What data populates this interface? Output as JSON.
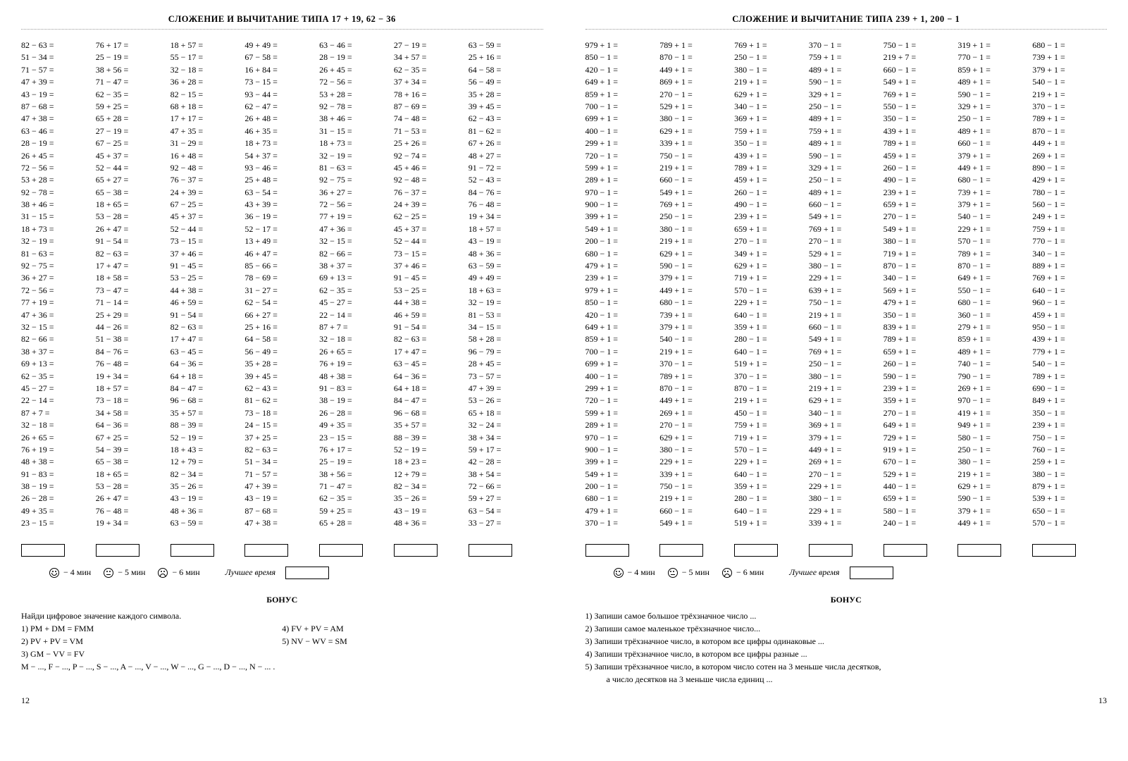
{
  "left": {
    "title": "СЛОЖЕНИЕ И ВЫЧИТАНИЕ ТИПА 17 + 19, 62 − 36",
    "columns": [
      [
        "82 − 63 =",
        "51 − 34 =",
        "71 − 57 =",
        "47 + 39 =",
        "43 − 19 =",
        "87 − 68 =",
        "47 + 38 =",
        "63 − 46 =",
        "28 − 19 =",
        "26 + 45 =",
        "72 − 56 =",
        "53 + 28 =",
        "92 − 78 =",
        "38 + 46 =",
        "31 − 15 =",
        "18 + 73 =",
        "32 − 19 =",
        "81 − 63 =",
        "92 − 75 =",
        "36 + 27 =",
        "72 − 56 =",
        "77 + 19 =",
        "47 + 36 =",
        "32 − 15 =",
        "82 − 66 =",
        "38 + 37 =",
        "69 + 13 =",
        "62 − 35 =",
        "45 − 27 =",
        "22 − 14 =",
        "87 +  7 =",
        "32 − 18 =",
        "26 + 65 =",
        "76 + 19 =",
        "48 + 38 =",
        "91 − 83 =",
        "38 − 19 =",
        "26 − 28 =",
        "49 + 35 =",
        "23 − 15 ="
      ],
      [
        "76 + 17 =",
        "25 − 19 =",
        "38 + 56 =",
        "71 − 47 =",
        "62 − 35 =",
        "59 + 25 =",
        "65 + 28 =",
        "27 − 19 =",
        "67 − 25 =",
        "45 + 37 =",
        "52 − 44 =",
        "65 + 27 =",
        "65 − 38 =",
        "18 + 65 =",
        "53 − 28 =",
        "26 + 47 =",
        "91 − 54 =",
        "82 − 63 =",
        "17 + 47 =",
        "18 + 58 =",
        "73 − 47 =",
        "71 − 14 =",
        "25 + 29 =",
        "44 − 26 =",
        "51 − 38 =",
        "84 − 76 =",
        "76 − 48 =",
        "19 + 34 =",
        "18 + 57 =",
        "73 − 18 =",
        "34 + 58 =",
        "64 − 36 =",
        "67 + 25 =",
        "54 − 39 =",
        "65 − 38 =",
        "18 + 65 =",
        "53 − 28 =",
        "26 + 47 =",
        "76 − 48 =",
        "19 + 34 ="
      ],
      [
        "18 + 57 =",
        "55 − 17 =",
        "32 − 18 =",
        "36 + 28 =",
        "82 − 15 =",
        "68 + 18 =",
        "17 + 17 =",
        "47 + 35 =",
        "31 − 29 =",
        "16 + 48 =",
        "92 − 48 =",
        "76 − 37 =",
        "24 + 39 =",
        "67 − 25 =",
        "45 + 37 =",
        "52 − 44 =",
        "73 − 15 =",
        "37 + 46 =",
        "91 − 45 =",
        "53 − 25 =",
        "44 + 38 =",
        "46 + 59 =",
        "91 − 54 =",
        "82 − 63 =",
        "17 + 47 =",
        "63 − 45 =",
        "64 − 36 =",
        "64 + 18 =",
        "84 − 47 =",
        "96 − 68 =",
        "35 + 57 =",
        "88 − 39 =",
        "52 − 19 =",
        "18 + 43 =",
        "12 + 79 =",
        "82 − 34 =",
        "35 − 26 =",
        "43 − 19 =",
        "48 + 36 =",
        "63 − 59 ="
      ],
      [
        "49 + 49 =",
        "67 − 58 =",
        "16 + 84 =",
        "73 − 15 =",
        "93 − 44 =",
        "62 − 47 =",
        "26 + 48 =",
        "46 + 35 =",
        "18 + 73 =",
        "54 + 37 =",
        "93 − 46 =",
        "25 + 48 =",
        "63 − 54 =",
        "43 + 39 =",
        "36 − 19 =",
        "52 − 17 =",
        "13 + 49 =",
        "46 + 47 =",
        "85 − 66 =",
        "78 − 69 =",
        "31 − 27 =",
        "62 − 54 =",
        "66 + 27 =",
        "25 + 16 =",
        "64 − 58 =",
        "56 − 49 =",
        "35 + 28 =",
        "39 + 45 =",
        "62 − 43 =",
        "81 − 62 =",
        "73 − 18 =",
        "24 − 15 =",
        "37 + 25 =",
        "82 − 63 =",
        "51 − 34 =",
        "71 − 57 =",
        "47 + 39 =",
        "43 − 19 =",
        "87 − 68 =",
        "47 + 38 ="
      ],
      [
        "63 − 46 =",
        "28 − 19 =",
        "26 + 45 =",
        "72 − 56 =",
        "53 + 28 =",
        "92 − 78 =",
        "38 + 46 =",
        "31 − 15 =",
        "18 + 73 =",
        "32 − 19 =",
        "81 − 63 =",
        "92 − 75 =",
        "36 + 27 =",
        "72 − 56 =",
        "77 + 19 =",
        "47 + 36 =",
        "32 − 15 =",
        "82 − 66 =",
        "38 + 37 =",
        "69 + 13 =",
        "62 − 35 =",
        "45 − 27 =",
        "22 − 14 =",
        "87 +  7 =",
        "32 − 18 =",
        "26 + 65 =",
        "76 + 19 =",
        "48 + 38 =",
        "91 − 83 =",
        "38 − 19 =",
        "26 − 28 =",
        "49 + 35 =",
        "23 − 15 =",
        "76 + 17 =",
        "25 − 19 =",
        "38 + 56 =",
        "71 − 47 =",
        "62 − 35 =",
        "59 + 25 =",
        "65 + 28 ="
      ],
      [
        "27 − 19 =",
        "34 + 57 =",
        "62 − 35 =",
        "37 + 34 =",
        "78 + 16 =",
        "87 − 69 =",
        "74 − 48 =",
        "71 − 53 =",
        "25 + 26 =",
        "92 − 74 =",
        "45 + 46 =",
        "92 − 48 =",
        "76 − 37 =",
        "24 + 39 =",
        "62 − 25 =",
        "45 + 37 =",
        "52 − 44 =",
        "73 − 15 =",
        "37 + 46 =",
        "91 − 45 =",
        "53 − 25 =",
        "44 + 38 =",
        "46 + 59 =",
        "91 − 54 =",
        "82 − 63 =",
        "17 + 47 =",
        "63 − 45 =",
        "64 − 36 =",
        "64 + 18 =",
        "84 − 47 =",
        "96 − 68 =",
        "35 + 57 =",
        "88 − 39 =",
        "52 − 19 =",
        "18 + 23 =",
        "12 + 79 =",
        "82 − 34 =",
        "35 − 26 =",
        "43 − 19 =",
        "48 + 36 ="
      ],
      [
        "63 − 59 =",
        "25 + 16 =",
        "64 − 58 =",
        "56 − 49 =",
        "35 + 28 =",
        "39 + 45 =",
        "62 − 43 =",
        "81 − 62 =",
        "67 + 26 =",
        "48 + 27 =",
        "91 − 72 =",
        "52 − 43 =",
        "84 − 76 =",
        "76 − 48 =",
        "19 + 34 =",
        "18 + 57 =",
        "43 − 19 =",
        "48 + 36 =",
        "63 − 59 =",
        "49 + 49 =",
        "18 + 63 =",
        "32 − 19 =",
        "81 − 53 =",
        "34 − 15 =",
        "58 + 28 =",
        "96 − 79 =",
        "28 + 45 =",
        "73 − 57 =",
        "47 + 39 =",
        "53 − 26 =",
        "65 + 18 =",
        "32 − 24 =",
        "38 + 34 =",
        "59 + 17 =",
        "42 − 28 =",
        "38 + 54 =",
        "72 − 66 =",
        "59 + 27 =",
        "63 − 54 =",
        "33 − 27 ="
      ]
    ],
    "times": [
      "− 4 мин",
      "− 5 мин",
      "− 6 мин"
    ],
    "best_label": "Лучшее время",
    "bonus_title": "БОНУС",
    "bonus_intro": "Найди цифровое значение каждого символа.",
    "bonus_lines_col1": [
      "1)  PM + DM = FMM",
      "2)  PV + PV = VM",
      "3)  GM − VV  = FV"
    ],
    "bonus_lines_col2": [
      "4)  FV + PV = AM",
      "5)  NV − WV = SM"
    ],
    "bonus_footer": "M − ...,  F − ...,  P − ...,  S − ...,  A − ...,  V − ...,  W − ...,  G − ...,  D − ...,  N − ... .",
    "pagenum": "12"
  },
  "right": {
    "title": "СЛОЖЕНИЕ И ВЫЧИТАНИЕ ТИПА 239 + 1, 200 − 1",
    "columns": [
      [
        "979 + 1 =",
        "850 − 1 =",
        "420 − 1 =",
        "649 + 1 =",
        "859 + 1 =",
        "700 − 1 =",
        "699 + 1 =",
        "400 − 1 =",
        "299 + 1 =",
        "720 − 1 =",
        "599 + 1 =",
        "289 + 1 =",
        "970 − 1 =",
        "900 − 1 =",
        "399 + 1 =",
        "549 + 1 =",
        "200 − 1 =",
        "680 − 1 =",
        "479 + 1 =",
        "239 + 1 =",
        "979 + 1 =",
        "850 − 1 =",
        "420 − 1 =",
        "649 + 1 =",
        "859 + 1 =",
        "700 − 1 =",
        "699 + 1 =",
        "400 − 1 =",
        "299 + 1 =",
        "720 − 1 =",
        "599 + 1 =",
        "289 + 1 =",
        "970 − 1 =",
        "900 − 1 =",
        "399 + 1 =",
        "549 + 1 =",
        "200 − 1 =",
        "680 − 1 =",
        "479 + 1 =",
        "370 − 1 ="
      ],
      [
        "789 + 1 =",
        "870 − 1 =",
        "449 + 1 =",
        "869 + 1 =",
        "270 − 1 =",
        "529 + 1 =",
        "380 − 1 =",
        "629 + 1 =",
        "339 + 1 =",
        "750 − 1 =",
        "219 + 1 =",
        "660 − 1 =",
        "549 + 1 =",
        "769 + 1 =",
        "250 − 1 =",
        "380 − 1 =",
        "219 + 1 =",
        "629 + 1 =",
        "590 − 1 =",
        "379 + 1 =",
        "449 + 1 =",
        "680 − 1 =",
        "739 + 1 =",
        "379 + 1 =",
        "540 − 1 =",
        "219 + 1 =",
        "370 − 1 =",
        "789 + 1 =",
        "870 − 1 =",
        "449 + 1 =",
        "269 + 1 =",
        "270 − 1 =",
        "629 + 1 =",
        "380 − 1 =",
        "229 + 1 =",
        "339 + 1 =",
        "750 − 1 =",
        "219 + 1 =",
        "660 − 1 =",
        "549 + 1 ="
      ],
      [
        "769 + 1 =",
        "250 − 1 =",
        "380 − 1 =",
        "219 + 1 =",
        "629 + 1 =",
        "340 − 1 =",
        "369 + 1 =",
        "759 + 1 =",
        "350 − 1 =",
        "439 + 1 =",
        "789 + 1 =",
        "459 + 1 =",
        "260 − 1 =",
        "490 − 1 =",
        "239 + 1 =",
        "659 + 1 =",
        "270 − 1 =",
        "349 + 1 =",
        "629 + 1 =",
        "719 + 1 =",
        "570 − 1 =",
        "229 + 1 =",
        "640 − 1 =",
        "359 + 1 =",
        "280 − 1 =",
        "640 − 1 =",
        "519 + 1 =",
        "370 − 1 =",
        "870 − 1 =",
        "219 + 1 =",
        "450 − 1 =",
        "759 + 1 =",
        "719 + 1 =",
        "570 − 1 =",
        "229 + 1 =",
        "640 − 1 =",
        "359 + 1 =",
        "280 − 1 =",
        "640 − 1 =",
        "519 + 1 ="
      ],
      [
        "370 − 1 =",
        "759 + 1 =",
        "489 + 1 =",
        "590 − 1 =",
        "329 + 1 =",
        "250 − 1 =",
        "489 + 1 =",
        "759 + 1 =",
        "489 + 1 =",
        "590 − 1 =",
        "329 + 1 =",
        "250 − 1 =",
        "489 + 1 =",
        "660 − 1 =",
        "549 + 1 =",
        "769 + 1 =",
        "270 − 1 =",
        "529 + 1 =",
        "380 − 1 =",
        "229 + 1 =",
        "639 + 1 =",
        "750 − 1 =",
        "219 + 1 =",
        "660 − 1 =",
        "549 + 1 =",
        "769 + 1 =",
        "250 − 1 =",
        "380 − 1 =",
        "219 + 1 =",
        "629 + 1 =",
        "340 − 1 =",
        "369 + 1 =",
        "379 + 1 =",
        "449 + 1 =",
        "269 + 1 =",
        "270 − 1 =",
        "229 + 1 =",
        "380 − 1 =",
        "229 + 1 =",
        "339 + 1 ="
      ],
      [
        "750 − 1 =",
        "219 + 7 =",
        "660 − 1 =",
        "549 + 1 =",
        "769 + 1 =",
        "550 − 1 =",
        "350 − 1 =",
        "439 + 1 =",
        "789 + 1 =",
        "459 + 1 =",
        "260 − 1 =",
        "490 − 1 =",
        "239 + 1 =",
        "659 + 1 =",
        "270 − 1 =",
        "549 + 1 =",
        "380 − 1 =",
        "719 + 1 =",
        "870 − 1 =",
        "340 − 1 =",
        "569 + 1 =",
        "479 + 1 =",
        "350 − 1 =",
        "839 + 1 =",
        "789 + 1 =",
        "659 + 1 =",
        "260 − 1 =",
        "590 − 1 =",
        "239 + 1 =",
        "359 + 1 =",
        "270 − 1 =",
        "649 + 1 =",
        "729 + 1 =",
        "919 + 1 =",
        "670 − 1 =",
        "529 + 1 =",
        "440 − 1 =",
        "659 + 1 =",
        "580 − 1 =",
        "240 − 1 ="
      ],
      [
        "319 + 1 =",
        "770 − 1 =",
        "859 + 1 =",
        "489 + 1 =",
        "590 − 1 =",
        "329 + 1 =",
        "250 − 1 =",
        "489 + 1 =",
        "660 − 1 =",
        "379 + 1 =",
        "449 + 1 =",
        "680 − 1 =",
        "739 + 1 =",
        "379 + 1 =",
        "540 − 1 =",
        "229 + 1 =",
        "570 − 1 =",
        "789 + 1 =",
        "870 − 1 =",
        "649 + 1 =",
        "550 − 1 =",
        "680 − 1 =",
        "360 − 1 =",
        "279 + 1 =",
        "859 + 1 =",
        "489 + 1 =",
        "740 − 1 =",
        "790 − 1 =",
        "269 + 1 =",
        "970 − 1 =",
        "419 + 1 =",
        "949 + 1 =",
        "580 − 1 =",
        "250 − 1 =",
        "380 − 1 =",
        "219 + 1 =",
        "629 + 1 =",
        "590 − 1 =",
        "379 + 1 =",
        "449 + 1 ="
      ],
      [
        "680 − 1 =",
        "739 + 1 =",
        "379 + 1 =",
        "540 − 1 =",
        "219 + 1 =",
        "370 − 1 =",
        "789 + 1 =",
        "870 − 1 =",
        "449 + 1 =",
        "269 + 1 =",
        "890 − 1 =",
        "429 + 1 =",
        "780 − 1 =",
        "560 − 1 =",
        "249 + 1 =",
        "759 + 1 =",
        "770 − 1 =",
        "340 − 1 =",
        "889 + 1 =",
        "769 + 1 =",
        "640 − 1 =",
        "960 − 1 =",
        "459 + 1 =",
        "950 − 1 =",
        "439 + 1 =",
        "779 + 1 =",
        "540 − 1 =",
        "789 + 1 =",
        "690 − 1 =",
        "849 + 1 =",
        "350 − 1 =",
        "239 + 1 =",
        "750 − 1 =",
        "760 − 1 =",
        "259 + 1 =",
        "380 − 1 =",
        "879 + 1 =",
        "539 + 1 =",
        "650 − 1 =",
        "570 − 1 ="
      ]
    ],
    "times": [
      "− 4 мин",
      "− 5 мин",
      "− 6 мин"
    ],
    "best_label": "Лучшее время",
    "bonus_title": "БОНУС",
    "bonus_lines": [
      "1) Запиши самое большое трёхзначное число ...",
      "2) Запиши самое маленькое трёхзначное число...",
      "3) Запиши трёхзначное число, в котором все цифры одинаковые ...",
      "4) Запиши трёхзначное число, в котором все цифры разные ...",
      "5) Запиши трёхзначное число, в котором число сотен на 3 меньше числа десятков,"
    ],
    "bonus_indent": "а число десятков на 3 меньше числа единиц  ...",
    "pagenum": "13"
  }
}
